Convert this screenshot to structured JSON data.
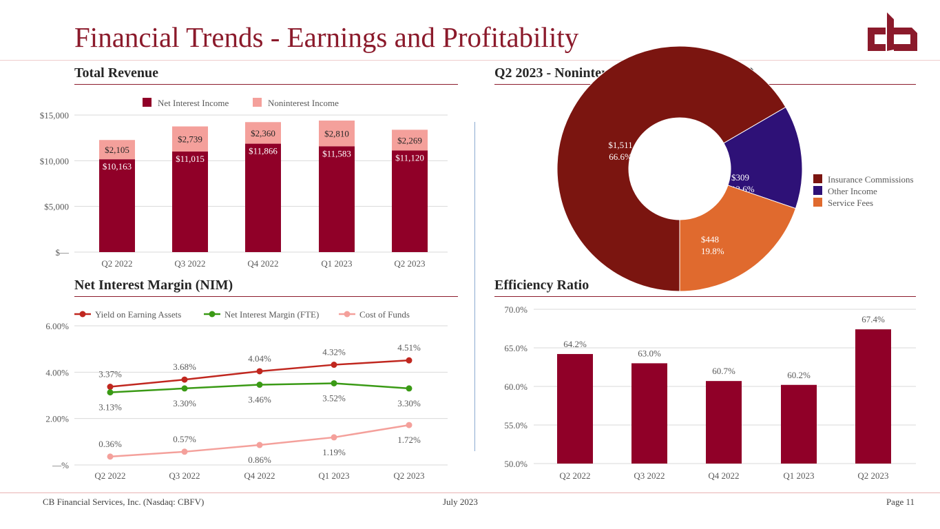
{
  "title": "Financial Trends - Earnings and Profitability",
  "logo": {
    "text": "cb",
    "color": "#8b1a2b"
  },
  "sections": {
    "revenue": "Total Revenue",
    "mix": "Q2 2023 - Noninterest Income Mix (in 000's)",
    "nim": "Net Interest Margin (NIM)",
    "efficiency": "Efficiency Ratio"
  },
  "footer": {
    "left": "CB Financial Services, Inc. (Nasdaq: CBFV)",
    "center": "July 2023",
    "right": "Page 11"
  },
  "chart_data": [
    {
      "type": "bar",
      "stacked": true,
      "categories": [
        "Q2 2022",
        "Q3 2022",
        "Q4 2022",
        "Q1 2023",
        "Q2 2023"
      ],
      "series": [
        {
          "name": "Net Interest Income",
          "values": [
            10163,
            11015,
            11866,
            11583,
            11120
          ],
          "labels": [
            "$10,163",
            "$11,015",
            "$11,866",
            "$11,583",
            "$11,120"
          ],
          "color": "#900028"
        },
        {
          "name": "Noninterest Income",
          "values": [
            2105,
            2739,
            2360,
            2810,
            2269
          ],
          "labels": [
            "$2,105",
            "$2,739",
            "$2,360",
            "$2,810",
            "$2,269"
          ],
          "color": "#f4a09b"
        }
      ],
      "ylim": [
        0,
        15000
      ],
      "yticks": [
        0,
        5000,
        10000,
        15000
      ],
      "ytick_labels": [
        "$—",
        "$5,000",
        "$10,000",
        "$15,000"
      ],
      "legend": "top",
      "grid": true
    },
    {
      "type": "pie",
      "donut": true,
      "slices": [
        {
          "name": "Insurance Commissions",
          "value": 1511,
          "label": "$1,511",
          "pct": "66.6%",
          "color": "#7b1510"
        },
        {
          "name": "Other Income",
          "value": 309,
          "label": "$309",
          "pct": "13.6%",
          "color": "#2e1177"
        },
        {
          "name": "Service Fees",
          "value": 448,
          "label": "$448",
          "pct": "19.8%",
          "color": "#e06a2e"
        }
      ],
      "legend": "right"
    },
    {
      "type": "line",
      "categories": [
        "Q2 2022",
        "Q3 2022",
        "Q4 2022",
        "Q1 2023",
        "Q2 2023"
      ],
      "series": [
        {
          "name": "Yield on Earning Assets",
          "values": [
            3.37,
            3.68,
            4.04,
            4.32,
            4.51
          ],
          "labels": [
            "3.37%",
            "3.68%",
            "4.04%",
            "4.32%",
            "4.51%"
          ],
          "color": "#c0271f"
        },
        {
          "name": "Net Interest Margin (FTE)",
          "values": [
            3.13,
            3.3,
            3.46,
            3.52,
            3.3
          ],
          "labels": [
            "3.13%",
            "3.30%",
            "3.46%",
            "3.52%",
            "3.30%"
          ],
          "color": "#3a9a15"
        },
        {
          "name": "Cost of Funds",
          "values": [
            0.36,
            0.57,
            0.86,
            1.19,
            1.72
          ],
          "labels": [
            "0.36%",
            "0.57%",
            "0.86%",
            "1.19%",
            "1.72%"
          ],
          "color": "#f4a09b"
        }
      ],
      "ylim": [
        0,
        6
      ],
      "yticks": [
        0,
        2,
        4,
        6
      ],
      "ytick_labels": [
        "—%",
        "2.00%",
        "4.00%",
        "6.00%"
      ],
      "legend": "top",
      "grid": true
    },
    {
      "type": "bar",
      "categories": [
        "Q2 2022",
        "Q3 2022",
        "Q4 2022",
        "Q1 2023",
        "Q2 2023"
      ],
      "values": [
        64.2,
        63.0,
        60.7,
        60.2,
        67.4
      ],
      "labels": [
        "64.2%",
        "63.0%",
        "60.7%",
        "60.2%",
        "67.4%"
      ],
      "color": "#900028",
      "ylim": [
        50,
        70
      ],
      "yticks": [
        50,
        55,
        60,
        65,
        70
      ],
      "ytick_labels": [
        "50.0%",
        "55.0%",
        "60.0%",
        "65.0%",
        "70.0%"
      ],
      "grid": true
    }
  ]
}
